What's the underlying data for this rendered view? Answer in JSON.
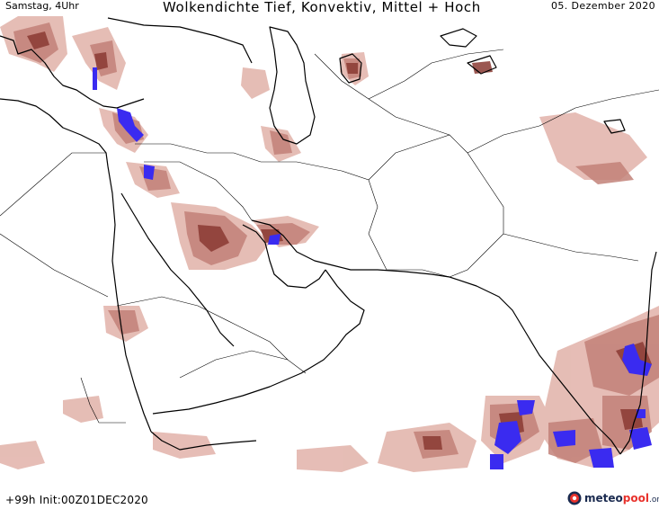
{
  "header": {
    "datetime_label": "Samstag, 4Uhr",
    "title": "Wolkendichte  Tief, Konvektiv, Mittel + Hoch",
    "date": "05. Dezember 2020"
  },
  "footer": {
    "run_info": "+99h Init:00Z01DEC2020",
    "logo_part1": "meteo",
    "logo_part2": "pool",
    "logo_part3": ".org"
  },
  "colors": {
    "cloud_light": "#e3b6ae",
    "cloud_mid": "#c28178",
    "cloud_dark": "#8a3a33",
    "convective": "#3a2bf0",
    "border": "#000000"
  },
  "icons": {
    "logo": "meteopool-logo-icon"
  }
}
